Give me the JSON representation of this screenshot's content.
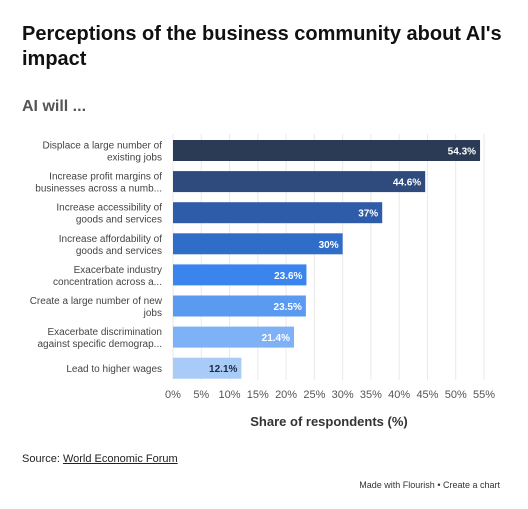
{
  "title": "Perceptions of the business community about AI's impact",
  "subtitle": "AI will ...",
  "chart_data": {
    "type": "bar",
    "orientation": "horizontal",
    "categories": [
      [
        "Displace a large number of",
        "existing jobs"
      ],
      [
        "Increase profit margins of",
        "businesses across a numb..."
      ],
      [
        "Increase accessibility of",
        "goods and services"
      ],
      [
        "Increase affordability of",
        "goods and services"
      ],
      [
        "Exacerbate industry",
        "concentration across a..."
      ],
      [
        "Create a large number of new",
        "jobs"
      ],
      [
        "Exacerbate discrimination",
        "against specific demograp..."
      ],
      [
        "Lead to higher wages"
      ]
    ],
    "values": [
      54.3,
      44.6,
      37,
      30,
      23.6,
      23.5,
      21.4,
      12.1
    ],
    "value_labels": [
      "54.3%",
      "44.6%",
      "37%",
      "30%",
      "23.6%",
      "23.5%",
      "21.4%",
      "12.1%"
    ],
    "bar_colors": [
      "#2b3a55",
      "#2f4a7c",
      "#2f5ca8",
      "#2f6dc9",
      "#3a84ee",
      "#5a9af0",
      "#7eb1f5",
      "#a9cbf8"
    ],
    "xlabel": "Share of respondents (%)",
    "xlim": [
      0,
      55
    ],
    "xticks": [
      "0%",
      "5%",
      "10%",
      "15%",
      "20%",
      "25%",
      "30%",
      "35%",
      "40%",
      "45%",
      "50%",
      "55%"
    ],
    "grid": true
  },
  "source": {
    "prefix": "Source: ",
    "link": "World Economic Forum"
  },
  "credit": {
    "made": "Made with Flourish",
    "separator": " • ",
    "create": "Create a chart"
  }
}
